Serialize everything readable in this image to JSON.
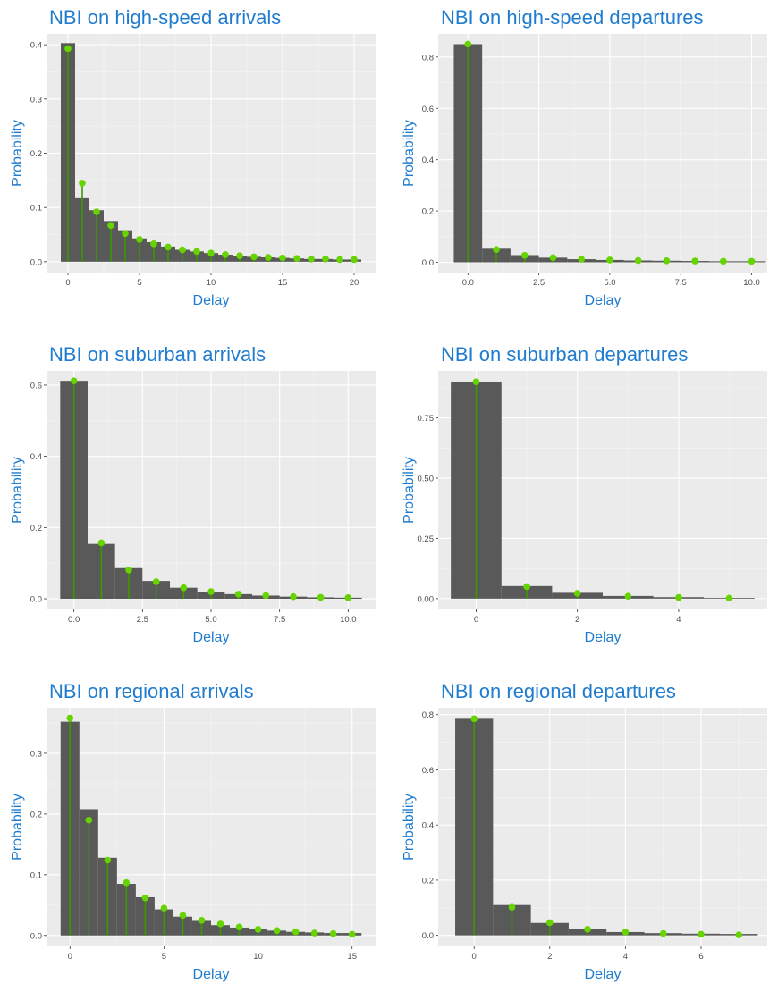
{
  "colors": {
    "bar": "#595959",
    "stem": "#3a9a00",
    "point": "#66d400",
    "title": "#1f7ccf"
  },
  "chart_data": [
    {
      "type": "bar",
      "title": "NBI on high-speed arrivals",
      "xlabel": "Delay",
      "ylabel": "Probability",
      "xlim": [
        -1.5,
        21.5
      ],
      "ylim": [
        -0.02,
        0.42
      ],
      "xticks": [
        0,
        5,
        10,
        15,
        20
      ],
      "xtick_labels": [
        "0",
        "5",
        "10",
        "15",
        "20"
      ],
      "yticks": [
        0.0,
        0.1,
        0.2,
        0.3,
        0.4
      ],
      "ytick_labels": [
        "0.0",
        "0.1",
        "0.2",
        "0.3",
        "0.4"
      ],
      "bar_width": 1,
      "bar_series": {
        "x": [
          0,
          1,
          2,
          3,
          4,
          5,
          6,
          7,
          8,
          9,
          10,
          11,
          12,
          13,
          14,
          15,
          16,
          17,
          18,
          19,
          20
        ],
        "values": [
          0.403,
          0.117,
          0.095,
          0.075,
          0.058,
          0.043,
          0.036,
          0.028,
          0.022,
          0.019,
          0.016,
          0.013,
          0.011,
          0.009,
          0.008,
          0.007,
          0.006,
          0.005,
          0.005,
          0.004,
          0.004
        ]
      },
      "point_series": {
        "x": [
          0,
          1,
          2,
          3,
          4,
          5,
          6,
          7,
          8,
          9,
          10,
          11,
          12,
          13,
          14,
          15,
          16,
          17,
          18,
          19,
          20
        ],
        "values": [
          0.393,
          0.145,
          0.092,
          0.067,
          0.052,
          0.041,
          0.033,
          0.027,
          0.022,
          0.019,
          0.016,
          0.013,
          0.011,
          0.009,
          0.008,
          0.007,
          0.006,
          0.005,
          0.005,
          0.004,
          0.004
        ]
      }
    },
    {
      "type": "bar",
      "title": "NBI on high-speed departures",
      "xlabel": "Delay",
      "ylabel": "Probability",
      "xlim": [
        -1.05,
        10.55
      ],
      "ylim": [
        -0.04,
        0.89
      ],
      "xticks": [
        0,
        2.5,
        5,
        7.5,
        10
      ],
      "xtick_labels": [
        "0.0",
        "2.5",
        "5.0",
        "7.5",
        "10.0"
      ],
      "yticks": [
        0.0,
        0.2,
        0.4,
        0.6,
        0.8
      ],
      "ytick_labels": [
        "0.0",
        "0.2",
        "0.4",
        "0.6",
        "0.8"
      ],
      "bar_width": 1,
      "bar_series": {
        "x": [
          0,
          1,
          2,
          3,
          4,
          5,
          6,
          7,
          8,
          9,
          10
        ],
        "values": [
          0.85,
          0.053,
          0.028,
          0.018,
          0.012,
          0.009,
          0.007,
          0.006,
          0.005,
          0.004,
          0.004
        ]
      },
      "point_series": {
        "x": [
          0,
          1,
          2,
          3,
          4,
          5,
          6,
          7,
          8,
          9,
          10
        ],
        "values": [
          0.85,
          0.05,
          0.027,
          0.018,
          0.012,
          0.009,
          0.007,
          0.006,
          0.005,
          0.004,
          0.004
        ]
      }
    },
    {
      "type": "bar",
      "title": "NBI on suburban arrivals",
      "xlabel": "Delay",
      "ylabel": "Probability",
      "xlim": [
        -1.0,
        11.0
      ],
      "ylim": [
        -0.03,
        0.64
      ],
      "xticks": [
        0,
        2.5,
        5,
        7.5,
        10
      ],
      "xtick_labels": [
        "0.0",
        "2.5",
        "5.0",
        "7.5",
        "10.0"
      ],
      "yticks": [
        0.0,
        0.2,
        0.4,
        0.6
      ],
      "ytick_labels": [
        "0.0",
        "0.2",
        "0.4",
        "0.6"
      ],
      "bar_width": 1,
      "bar_series": {
        "x": [
          0,
          1,
          2,
          3,
          4,
          5,
          6,
          7,
          8,
          9,
          10
        ],
        "values": [
          0.612,
          0.154,
          0.086,
          0.05,
          0.031,
          0.02,
          0.013,
          0.009,
          0.006,
          0.004,
          0.003
        ]
      },
      "point_series": {
        "x": [
          0,
          1,
          2,
          3,
          4,
          5,
          6,
          7,
          8,
          9,
          10
        ],
        "values": [
          0.612,
          0.157,
          0.081,
          0.048,
          0.031,
          0.02,
          0.013,
          0.009,
          0.006,
          0.004,
          0.003
        ]
      }
    },
    {
      "type": "bar",
      "title": "NBI on suburban departures",
      "xlabel": "Delay",
      "ylabel": "Probability",
      "xlim": [
        -0.75,
        5.75
      ],
      "ylim": [
        -0.045,
        0.945
      ],
      "xticks": [
        0,
        2,
        4
      ],
      "xtick_labels": [
        "0",
        "2",
        "4"
      ],
      "yticks": [
        0.0,
        0.25,
        0.5,
        0.75
      ],
      "ytick_labels": [
        "0.00",
        "0.25",
        "0.50",
        "0.75"
      ],
      "bar_width": 1,
      "bar_series": {
        "x": [
          0,
          1,
          2,
          3,
          4,
          5
        ],
        "values": [
          0.9,
          0.052,
          0.024,
          0.011,
          0.006,
          0.003
        ]
      },
      "point_series": {
        "x": [
          0,
          1,
          2,
          3,
          4,
          5
        ],
        "values": [
          0.9,
          0.05,
          0.022,
          0.01,
          0.005,
          0.002
        ]
      }
    },
    {
      "type": "bar",
      "title": "NBI on regional arrivals",
      "xlabel": "Delay",
      "ylabel": "Probability",
      "xlim": [
        -1.25,
        16.25
      ],
      "ylim": [
        -0.018,
        0.375
      ],
      "xticks": [
        0,
        5,
        10,
        15
      ],
      "xtick_labels": [
        "0",
        "5",
        "10",
        "15"
      ],
      "yticks": [
        0.0,
        0.1,
        0.2,
        0.3
      ],
      "ytick_labels": [
        "0.0",
        "0.1",
        "0.2",
        "0.3"
      ],
      "bar_width": 1,
      "bar_series": {
        "x": [
          0,
          1,
          2,
          3,
          4,
          5,
          6,
          7,
          8,
          9,
          10,
          11,
          12,
          13,
          14,
          15
        ],
        "values": [
          0.352,
          0.208,
          0.128,
          0.085,
          0.063,
          0.043,
          0.031,
          0.024,
          0.017,
          0.013,
          0.01,
          0.008,
          0.006,
          0.005,
          0.004,
          0.004
        ]
      },
      "point_series": {
        "x": [
          0,
          1,
          2,
          3,
          4,
          5,
          6,
          7,
          8,
          9,
          10,
          11,
          12,
          13,
          14,
          15
        ],
        "values": [
          0.358,
          0.19,
          0.124,
          0.087,
          0.062,
          0.045,
          0.033,
          0.025,
          0.019,
          0.014,
          0.01,
          0.008,
          0.006,
          0.004,
          0.003,
          0.002
        ]
      }
    },
    {
      "type": "bar",
      "title": "NBI on regional departures",
      "xlabel": "Delay",
      "ylabel": "Probability",
      "xlim": [
        -0.95,
        7.75
      ],
      "ylim": [
        -0.04,
        0.825
      ],
      "xticks": [
        0,
        2,
        4,
        6
      ],
      "xtick_labels": [
        "0",
        "2",
        "4",
        "6"
      ],
      "yticks": [
        0.0,
        0.2,
        0.4,
        0.6,
        0.8
      ],
      "ytick_labels": [
        "0.0",
        "0.2",
        "0.4",
        "0.6",
        "0.8"
      ],
      "bar_width": 1,
      "bar_series": {
        "x": [
          0,
          1,
          2,
          3,
          4,
          5,
          6,
          7
        ],
        "values": [
          0.785,
          0.11,
          0.045,
          0.022,
          0.012,
          0.008,
          0.006,
          0.005
        ]
      },
      "point_series": {
        "x": [
          0,
          1,
          2,
          3,
          4,
          5,
          6,
          7
        ],
        "values": [
          0.785,
          0.102,
          0.046,
          0.022,
          0.012,
          0.007,
          0.004,
          0.002
        ]
      }
    }
  ]
}
